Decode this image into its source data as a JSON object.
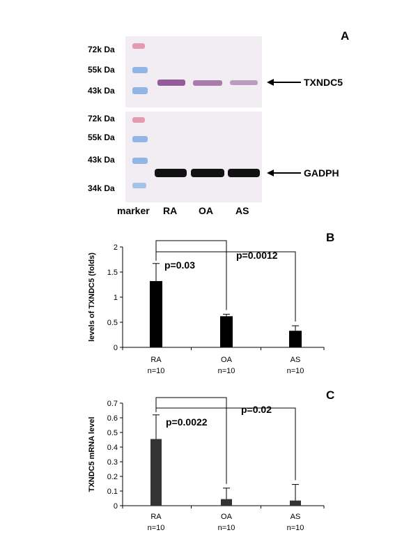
{
  "panel_a": {
    "label": "A",
    "top_markers": [
      "72k Da",
      "55k Da",
      "43k Da"
    ],
    "bottom_markers": [
      "72k Da",
      "55k Da",
      "43k Da",
      "34k Da"
    ],
    "top_band": "TXNDC5",
    "bottom_band": "GADPH",
    "lanes": [
      "marker",
      "RA",
      "OA",
      "AS"
    ],
    "colors": {
      "blot_bg": "#f2edf2",
      "marker_pink": "#e28ca6",
      "marker_blue": "#86aee6",
      "top_band": "#8a4b90",
      "bottom_band": "#111111"
    }
  },
  "chart_data": [
    {
      "type": "bar",
      "panel_label": "B",
      "ylabel": "levels of TXNDC5 (folds)",
      "categories": [
        "RA",
        "OA",
        "AS"
      ],
      "category_sub": [
        "n=10",
        "n=10",
        "n=10"
      ],
      "values": [
        1.32,
        0.62,
        0.33
      ],
      "errors": [
        0.35,
        0.04,
        0.1
      ],
      "yticks": [
        "0",
        "0.5",
        "1",
        "1.5",
        "2"
      ],
      "ylim": [
        0,
        2
      ],
      "comparisons": [
        {
          "from": 0,
          "to": 1,
          "label": "p=0.03"
        },
        {
          "from": 0,
          "to": 2,
          "label": "p=0.0012"
        }
      ],
      "color": "#000000"
    },
    {
      "type": "bar",
      "panel_label": "C",
      "ylabel": "TXNDC5 mRNA  level",
      "categories": [
        "RA",
        "OA",
        "AS"
      ],
      "category_sub": [
        "n=10",
        "n=10",
        "n=10"
      ],
      "values": [
        0.455,
        0.045,
        0.035
      ],
      "errors": [
        0.165,
        0.075,
        0.11
      ],
      "yticks": [
        "0",
        "0.1",
        "0.2",
        "0.3",
        "0.4",
        "0.5",
        "0.6",
        "0.7"
      ],
      "ylim": [
        0,
        0.7
      ],
      "comparisons": [
        {
          "from": 0,
          "to": 1,
          "label": "p=0.0022"
        },
        {
          "from": 0,
          "to": 2,
          "label": "p=0.02"
        }
      ],
      "color": "#333333"
    }
  ]
}
